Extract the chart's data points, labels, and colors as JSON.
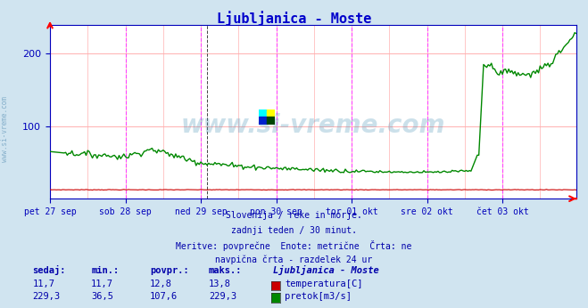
{
  "title": "Ljubljanica - Moste",
  "bg_color": "#d0e4f0",
  "plot_bg_color": "#ffffff",
  "grid_color": "#ffb0b0",
  "vline_color_solid": "#ff44ff",
  "vline_color_dash": "#555555",
  "axis_color": "#0000bb",
  "title_color": "#0000cc",
  "text_color": "#0000aa",
  "xlabel_color": "#0000aa",
  "x_labels": [
    "pet 27 sep",
    "sob 28 sep",
    "ned 29 sep",
    "pon 30 sep",
    "tor 01 okt",
    "sre 02 okt",
    "čet 03 okt"
  ],
  "x_ticks_pos": [
    0,
    48,
    96,
    144,
    192,
    240,
    288
  ],
  "ylim": [
    0,
    240
  ],
  "yticks": [
    100,
    200
  ],
  "n_points": 336,
  "temperature_color": "#cc0000",
  "flow_color": "#008800",
  "subtitle_lines": [
    "Slovenija / reke in morje.",
    "zadnji teden / 30 minut.",
    "Meritve: povprečne  Enote: metrične  Črta: ne",
    "navpična črta - razdelek 24 ur"
  ],
  "stats_header": [
    "sedaj:",
    "min.:",
    "povpr.:",
    "maks.:",
    "Ljubljanica - Moste"
  ],
  "stats_temp": [
    "11,7",
    "11,7",
    "12,8",
    "13,8",
    "temperatura[C]"
  ],
  "stats_flow": [
    "229,3",
    "36,5",
    "107,6",
    "229,3",
    "pretok[m3/s]"
  ],
  "watermark": "www.si-vreme.com",
  "left_label": "www.si-vreme.com"
}
